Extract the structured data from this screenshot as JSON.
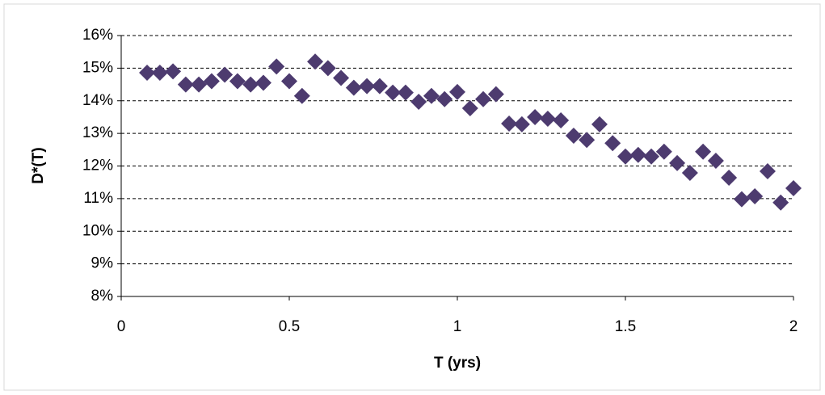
{
  "chart_data": {
    "type": "scatter",
    "x_label": "T (yrs)",
    "y_label": "D*(T)",
    "color": "#4d3b6f",
    "grid": true,
    "xlim": [
      0,
      2
    ],
    "xticks": [
      0,
      0.5,
      1,
      1.5,
      2
    ],
    "ylim": [
      8,
      16
    ],
    "yticks": [
      {
        "value": 8,
        "label": "8%"
      },
      {
        "value": 9,
        "label": "9%"
      },
      {
        "value": 10,
        "label": "10%"
      },
      {
        "value": 11,
        "label": "11%"
      },
      {
        "value": 12,
        "label": "12%"
      },
      {
        "value": 13,
        "label": "13%"
      },
      {
        "value": 14,
        "label": "14%"
      },
      {
        "value": 15,
        "label": "15%"
      },
      {
        "value": 16,
        "label": "16%"
      }
    ],
    "x": [
      0.077,
      0.115,
      0.154,
      0.192,
      0.231,
      0.269,
      0.308,
      0.346,
      0.385,
      0.423,
      0.462,
      0.5,
      0.538,
      0.577,
      0.615,
      0.654,
      0.692,
      0.731,
      0.769,
      0.808,
      0.846,
      0.885,
      0.923,
      0.962,
      1.0,
      1.038,
      1.077,
      1.115,
      1.154,
      1.192,
      1.231,
      1.269,
      1.308,
      1.346,
      1.385,
      1.423,
      1.462,
      1.5,
      1.538,
      1.577,
      1.615,
      1.654,
      1.692,
      1.731,
      1.769,
      1.808,
      1.846,
      1.885,
      1.923,
      1.962,
      2.0
    ],
    "values": [
      14.86,
      14.86,
      14.9,
      14.5,
      14.5,
      14.6,
      14.8,
      14.6,
      14.5,
      14.55,
      15.05,
      14.6,
      14.15,
      15.2,
      15.0,
      14.7,
      14.4,
      14.45,
      14.45,
      14.25,
      14.25,
      13.97,
      14.15,
      14.05,
      14.27,
      13.77,
      14.05,
      14.2,
      13.3,
      13.28,
      13.5,
      13.45,
      13.4,
      12.93,
      12.8,
      13.28,
      12.7,
      12.29,
      12.34,
      12.29,
      12.44,
      12.09,
      11.79,
      12.44,
      12.16,
      11.64,
      10.98,
      11.07,
      11.84,
      10.88,
      11.32
    ]
  }
}
